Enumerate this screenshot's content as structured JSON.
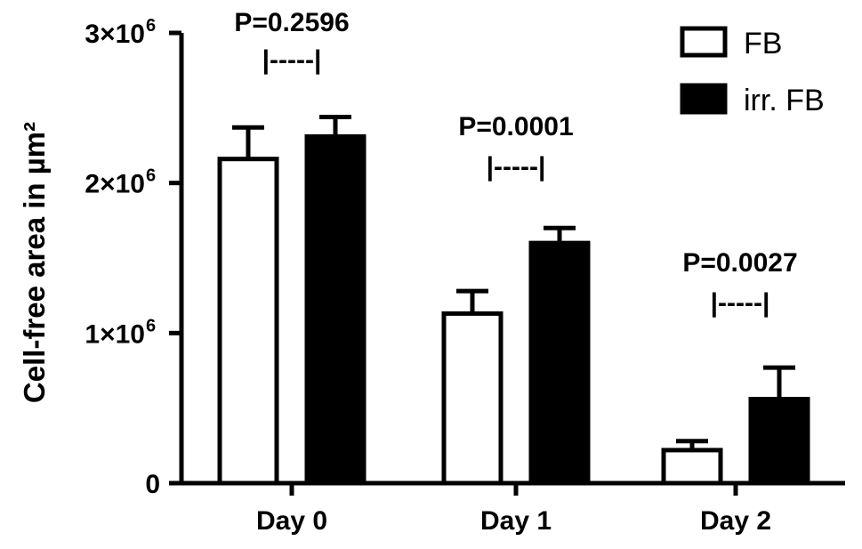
{
  "chart_data": {
    "type": "bar",
    "categories": [
      "Day 0",
      "Day 1",
      "Day 2"
    ],
    "series": [
      {
        "name": "FB",
        "color": "#ffffff",
        "values": [
          2160000,
          1130000,
          220000
        ],
        "errors": [
          210000,
          150000,
          60000
        ]
      },
      {
        "name": "irr. FB",
        "color": "#000000",
        "values": [
          2310000,
          1600000,
          560000
        ],
        "errors": [
          130000,
          100000,
          210000
        ]
      }
    ],
    "ylabel": "Cell-free area in µm²",
    "ylim": [
      0,
      3000000
    ],
    "yticks": [
      {
        "value": 0,
        "label": "0"
      },
      {
        "value": 1000000,
        "label": "1×10",
        "sup": "6"
      },
      {
        "value": 2000000,
        "label": "2×10",
        "sup": "6"
      },
      {
        "value": 3000000,
        "label": "3×10",
        "sup": "6"
      }
    ],
    "annotations": [
      {
        "category": "Day 0",
        "text": "P=0.2596",
        "bracket": "|-----|"
      },
      {
        "category": "Day 1",
        "text": "P=0.0001",
        "bracket": "|-----|"
      },
      {
        "category": "Day 2",
        "text": "P=0.0027",
        "bracket": "|-----|"
      }
    ],
    "legend_position": "top-right",
    "grid": false
  }
}
